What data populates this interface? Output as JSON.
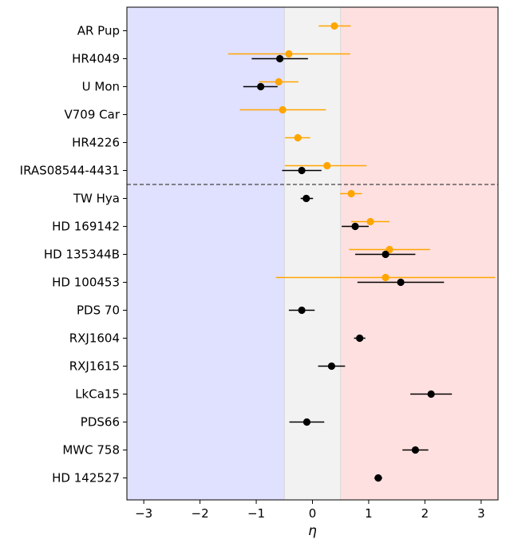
{
  "chart_data": {
    "type": "scatter",
    "subtype": "horizontal-errorbar",
    "title": "",
    "xlabel": "η",
    "ylabel": "",
    "xlim": [
      -3.3,
      3.3
    ],
    "xticks": [
      -3,
      -2,
      -1,
      0,
      1,
      2,
      3
    ],
    "xtick_labels": [
      "−3",
      "−2",
      "−1",
      "0",
      "1",
      "2",
      "3"
    ],
    "grid": false,
    "legend": "none",
    "categories": [
      "AR Pup",
      "HR4049",
      "U Mon",
      "V709 Car",
      "HR4226",
      "IRAS08544-4431",
      "TW Hya",
      "HD 169142",
      "HD 135344B",
      "HD 100453",
      "PDS 70",
      "RXJ1604",
      "RXJ1615",
      "LkCa15",
      "PDS66",
      "MWC 758",
      "HD 142527"
    ],
    "bands": [
      {
        "x0": -3.3,
        "x1": -0.5,
        "color": "#e0e0ff"
      },
      {
        "x0": -0.5,
        "x1": 0.5,
        "color": "#f2f2f2"
      },
      {
        "x0": 0.5,
        "x1": 3.3,
        "color": "#ffe0e0"
      }
    ],
    "separator": {
      "after_category": "IRAS08544-4431",
      "style": "dashed",
      "color": "#444444"
    },
    "series": [
      {
        "name": "orange",
        "color": "#ffa500",
        "points": [
          {
            "label": "AR Pup",
            "x": 0.39,
            "xerr_low": 0.28,
            "xerr_high": 0.29
          },
          {
            "label": "HR4049",
            "x": -0.42,
            "xerr_low": 1.08,
            "xerr_high": 1.09
          },
          {
            "label": "U Mon",
            "x": -0.6,
            "xerr_low": 0.35,
            "xerr_high": 0.35
          },
          {
            "label": "V709 Car",
            "x": -0.53,
            "xerr_low": 0.76,
            "xerr_high": 0.77
          },
          {
            "label": "HR4226",
            "x": -0.26,
            "xerr_low": 0.23,
            "xerr_high": 0.22
          },
          {
            "label": "IRAS08544-4431",
            "x": 0.26,
            "xerr_low": 0.75,
            "xerr_high": 0.7
          },
          {
            "label": "TW Hya",
            "x": 0.69,
            "xerr_low": 0.2,
            "xerr_high": 0.19
          },
          {
            "label": "HD 169142",
            "x": 1.03,
            "xerr_low": 0.34,
            "xerr_high": 0.34
          },
          {
            "label": "HD 135344B",
            "x": 1.37,
            "xerr_low": 0.72,
            "xerr_high": 0.72
          },
          {
            "label": "HD 100453",
            "x": 1.3,
            "xerr_low": 1.95,
            "xerr_high": 1.95
          }
        ]
      },
      {
        "name": "black",
        "color": "#000000",
        "points": [
          {
            "label": "HR4049",
            "x": -0.58,
            "xerr_low": 0.5,
            "xerr_high": 0.5
          },
          {
            "label": "U Mon",
            "x": -0.92,
            "xerr_low": 0.31,
            "xerr_high": 0.3
          },
          {
            "label": "IRAS08544-4431",
            "x": -0.19,
            "xerr_low": 0.35,
            "xerr_high": 0.35
          },
          {
            "label": "TW Hya",
            "x": -0.11,
            "xerr_low": 0.1,
            "xerr_high": 0.12
          },
          {
            "label": "HD 169142",
            "x": 0.76,
            "xerr_low": 0.24,
            "xerr_high": 0.24
          },
          {
            "label": "HD 135344B",
            "x": 1.3,
            "xerr_low": 0.54,
            "xerr_high": 0.53
          },
          {
            "label": "HD 100453",
            "x": 1.57,
            "xerr_low": 0.77,
            "xerr_high": 0.77
          },
          {
            "label": "PDS 70",
            "x": -0.19,
            "xerr_low": 0.23,
            "xerr_high": 0.23
          },
          {
            "label": "RXJ1604",
            "x": 0.84,
            "xerr_low": 0.1,
            "xerr_high": 0.1
          },
          {
            "label": "RXJ1615",
            "x": 0.34,
            "xerr_low": 0.24,
            "xerr_high": 0.24
          },
          {
            "label": "LkCa15",
            "x": 2.11,
            "xerr_low": 0.37,
            "xerr_high": 0.37
          },
          {
            "label": "PDS66",
            "x": -0.1,
            "xerr_low": 0.31,
            "xerr_high": 0.31
          },
          {
            "label": "MWC 758",
            "x": 1.83,
            "xerr_low": 0.23,
            "xerr_high": 0.23
          },
          {
            "label": "HD 142527",
            "x": 1.17,
            "xerr_low": 0.07,
            "xerr_high": 0.07
          }
        ]
      }
    ]
  }
}
